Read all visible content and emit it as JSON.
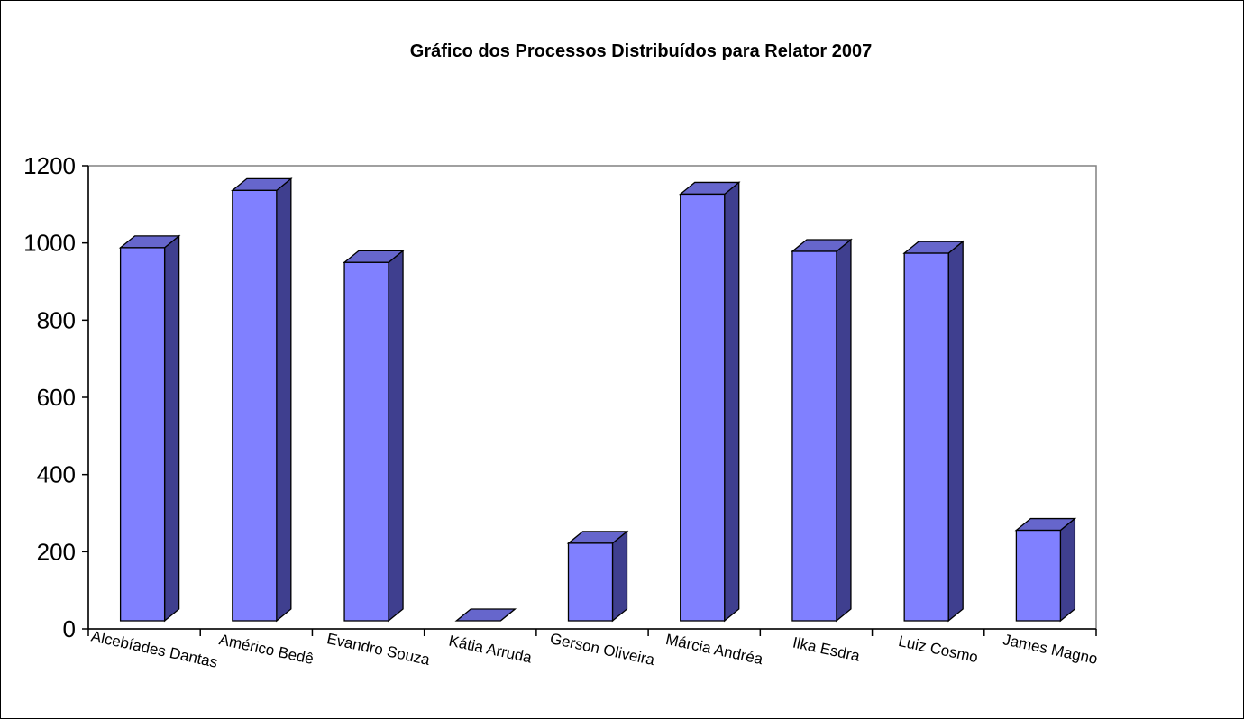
{
  "chart_data": {
    "type": "bar",
    "title": "Gráfico dos Processos Distribuídos para Relator 2007",
    "xlabel": "",
    "ylabel": "",
    "categories": [
      "Alcebíades Dantas",
      "Américo Bedê",
      "Evandro Souza",
      "Kátia Arruda",
      "Gerson Oliveira",
      "Márcia Andréa",
      "Ilka Esdra",
      "Luiz Cosmo",
      "James Magno"
    ],
    "values": [
      1010,
      1165,
      970,
      0,
      210,
      1155,
      1000,
      995,
      245
    ],
    "ylim": [
      0,
      1200
    ],
    "yticks": [
      "0",
      "200",
      "400",
      "600",
      "800",
      "1000",
      "1200"
    ],
    "grid": false,
    "legend": "none",
    "style": "3d-column",
    "colors": {
      "bar_front": "#8080ff",
      "bar_side": "#3f3f8f",
      "bar_top": "#6666cc",
      "outline": "#000000",
      "plot_border": "#808080"
    }
  }
}
